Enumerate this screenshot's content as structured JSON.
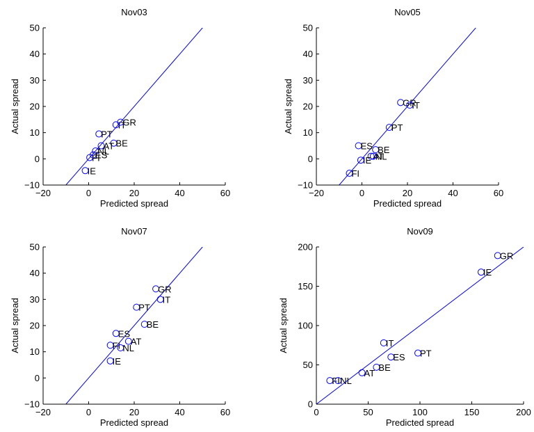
{
  "figure": {
    "accent_color": "#0000ff"
  },
  "chart_data": [
    {
      "type": "scatter",
      "title": "Nov03",
      "xlabel": "Predicted spread",
      "ylabel": "Actual spread",
      "xlim": [
        -20,
        60
      ],
      "ylim": [
        -10,
        50
      ],
      "xticks": [
        -20,
        0,
        20,
        40,
        60
      ],
      "yticks": [
        -10,
        0,
        10,
        20,
        30,
        40,
        50
      ],
      "reference_line": [
        [
          -10,
          -10
        ],
        [
          50,
          50
        ]
      ],
      "points": [
        {
          "label": "GR",
          "x": 14,
          "y": 14
        },
        {
          "label": "IT",
          "x": 12,
          "y": 13
        },
        {
          "label": "PT",
          "x": 4.5,
          "y": 9.5
        },
        {
          "label": "BE",
          "x": 11,
          "y": 6
        },
        {
          "label": "AT",
          "x": 5.5,
          "y": 5
        },
        {
          "label": "NL",
          "x": 3,
          "y": 3
        },
        {
          "label": "ES",
          "x": 2,
          "y": 1.5
        },
        {
          "label": "FI",
          "x": 0.5,
          "y": 0.5
        },
        {
          "label": "IE",
          "x": -1.5,
          "y": -4.5
        }
      ]
    },
    {
      "type": "scatter",
      "title": "Nov05",
      "xlabel": "Predicted spread",
      "ylabel": "Actual spread",
      "xlim": [
        -20,
        60
      ],
      "ylim": [
        -10,
        50
      ],
      "xticks": [
        -20,
        0,
        20,
        40,
        60
      ],
      "yticks": [
        -10,
        0,
        10,
        20,
        30,
        40,
        50
      ],
      "reference_line": [
        [
          -10,
          -10
        ],
        [
          50,
          50
        ]
      ],
      "points": [
        {
          "label": "GR",
          "x": 17,
          "y": 21.5
        },
        {
          "label": "IT",
          "x": 21,
          "y": 20.5
        },
        {
          "label": "PT",
          "x": 12,
          "y": 12
        },
        {
          "label": "ES",
          "x": -1.5,
          "y": 5
        },
        {
          "label": "BE",
          "x": 6,
          "y": 3.5
        },
        {
          "label": "AT",
          "x": 4,
          "y": 1
        },
        {
          "label": "NL",
          "x": 5,
          "y": 1
        },
        {
          "label": "IE",
          "x": -0.5,
          "y": -0.5
        },
        {
          "label": "FI",
          "x": -5.5,
          "y": -5.5
        }
      ]
    },
    {
      "type": "scatter",
      "title": "Nov07",
      "xlabel": "Predicted spread",
      "ylabel": "Actual spread",
      "xlim": [
        -20,
        60
      ],
      "ylim": [
        -10,
        50
      ],
      "xticks": [
        -20,
        0,
        20,
        40,
        60
      ],
      "yticks": [
        -10,
        0,
        10,
        20,
        30,
        40,
        50
      ],
      "reference_line": [
        [
          -10,
          -10
        ],
        [
          50,
          50
        ]
      ],
      "points": [
        {
          "label": "GR",
          "x": 29.5,
          "y": 34
        },
        {
          "label": "IT",
          "x": 31.5,
          "y": 30
        },
        {
          "label": "PT",
          "x": 21,
          "y": 27
        },
        {
          "label": "BE",
          "x": 24.5,
          "y": 20.5
        },
        {
          "label": "ES",
          "x": 12,
          "y": 17
        },
        {
          "label": "AT",
          "x": 17.5,
          "y": 14
        },
        {
          "label": "FI",
          "x": 9.5,
          "y": 12.5
        },
        {
          "label": "NL",
          "x": 14,
          "y": 11.5
        },
        {
          "label": "IE",
          "x": 9.5,
          "y": 6.5
        }
      ]
    },
    {
      "type": "scatter",
      "title": "Nov09",
      "xlabel": "Predicted spread",
      "ylabel": "Actual spread",
      "xlim": [
        0,
        200
      ],
      "ylim": [
        0,
        200
      ],
      "xticks": [
        0,
        50,
        100,
        150,
        200
      ],
      "yticks": [
        0,
        50,
        100,
        150,
        200
      ],
      "reference_line": [
        [
          0,
          0
        ],
        [
          200,
          200
        ]
      ],
      "points": [
        {
          "label": "GR",
          "x": 175,
          "y": 189
        },
        {
          "label": "IE",
          "x": 159,
          "y": 168
        },
        {
          "label": "IT",
          "x": 65,
          "y": 78
        },
        {
          "label": "PT",
          "x": 98,
          "y": 65
        },
        {
          "label": "ES",
          "x": 72,
          "y": 60
        },
        {
          "label": "BE",
          "x": 58,
          "y": 47
        },
        {
          "label": "AT",
          "x": 44,
          "y": 40
        },
        {
          "label": "FI",
          "x": 13,
          "y": 30
        },
        {
          "label": "NL",
          "x": 21,
          "y": 30
        }
      ]
    }
  ]
}
